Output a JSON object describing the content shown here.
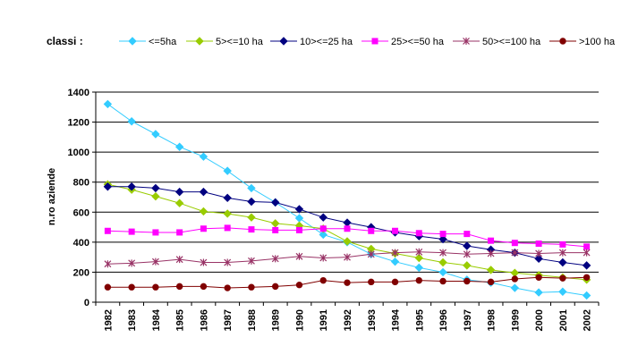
{
  "chart_data": {
    "type": "line",
    "legend_title": "classi :",
    "legend_placement": "top",
    "ylabel": "n.ro aziende",
    "xlabel": "",
    "ylim": [
      0,
      1400
    ],
    "yticks": [
      0,
      200,
      400,
      600,
      800,
      1000,
      1200,
      1400
    ],
    "grid": "horizontal",
    "x": [
      "1982",
      "1983",
      "1984",
      "1985",
      "1986",
      "1987",
      "1988",
      "1989",
      "1990",
      "1991",
      "1992",
      "1993",
      "1994",
      "1995",
      "1996",
      "1997",
      "1998",
      "1999",
      "2000",
      "2001",
      "2002"
    ],
    "series": [
      {
        "name": "<=5ha",
        "color": "#33CCFF",
        "marker": "diamond",
        "values": [
          1320,
          1205,
          1120,
          1035,
          970,
          875,
          760,
          665,
          560,
          450,
          400,
          320,
          270,
          230,
          200,
          150,
          130,
          95,
          65,
          70,
          45
        ]
      },
      {
        "name": "5><=10 ha",
        "color": "#99CC00",
        "marker": "diamond",
        "values": [
          785,
          750,
          705,
          660,
          605,
          590,
          565,
          525,
          510,
          490,
          405,
          355,
          325,
          295,
          265,
          245,
          215,
          195,
          180,
          165,
          150
        ]
      },
      {
        "name": "10><=25 ha",
        "color": "#000080",
        "marker": "diamond",
        "values": [
          770,
          770,
          760,
          735,
          735,
          695,
          670,
          665,
          620,
          565,
          530,
          500,
          465,
          440,
          420,
          375,
          350,
          330,
          290,
          265,
          245
        ]
      },
      {
        "name": "25><=50 ha",
        "color": "#FF00FF",
        "marker": "square",
        "values": [
          475,
          470,
          465,
          465,
          490,
          495,
          485,
          480,
          480,
          490,
          490,
          475,
          475,
          460,
          455,
          455,
          410,
          395,
          390,
          385,
          370
        ]
      },
      {
        "name": "50><=100 ha",
        "color": "#993366",
        "marker": "star",
        "values": [
          255,
          260,
          270,
          285,
          265,
          265,
          275,
          290,
          305,
          295,
          300,
          320,
          330,
          335,
          330,
          320,
          325,
          330,
          325,
          330,
          330
        ]
      },
      {
        "name": ">100 ha",
        "color": "#800000",
        "marker": "circle",
        "values": [
          100,
          100,
          100,
          105,
          105,
          95,
          100,
          105,
          115,
          145,
          130,
          135,
          135,
          145,
          140,
          140,
          135,
          155,
          165,
          160,
          165
        ]
      }
    ]
  }
}
